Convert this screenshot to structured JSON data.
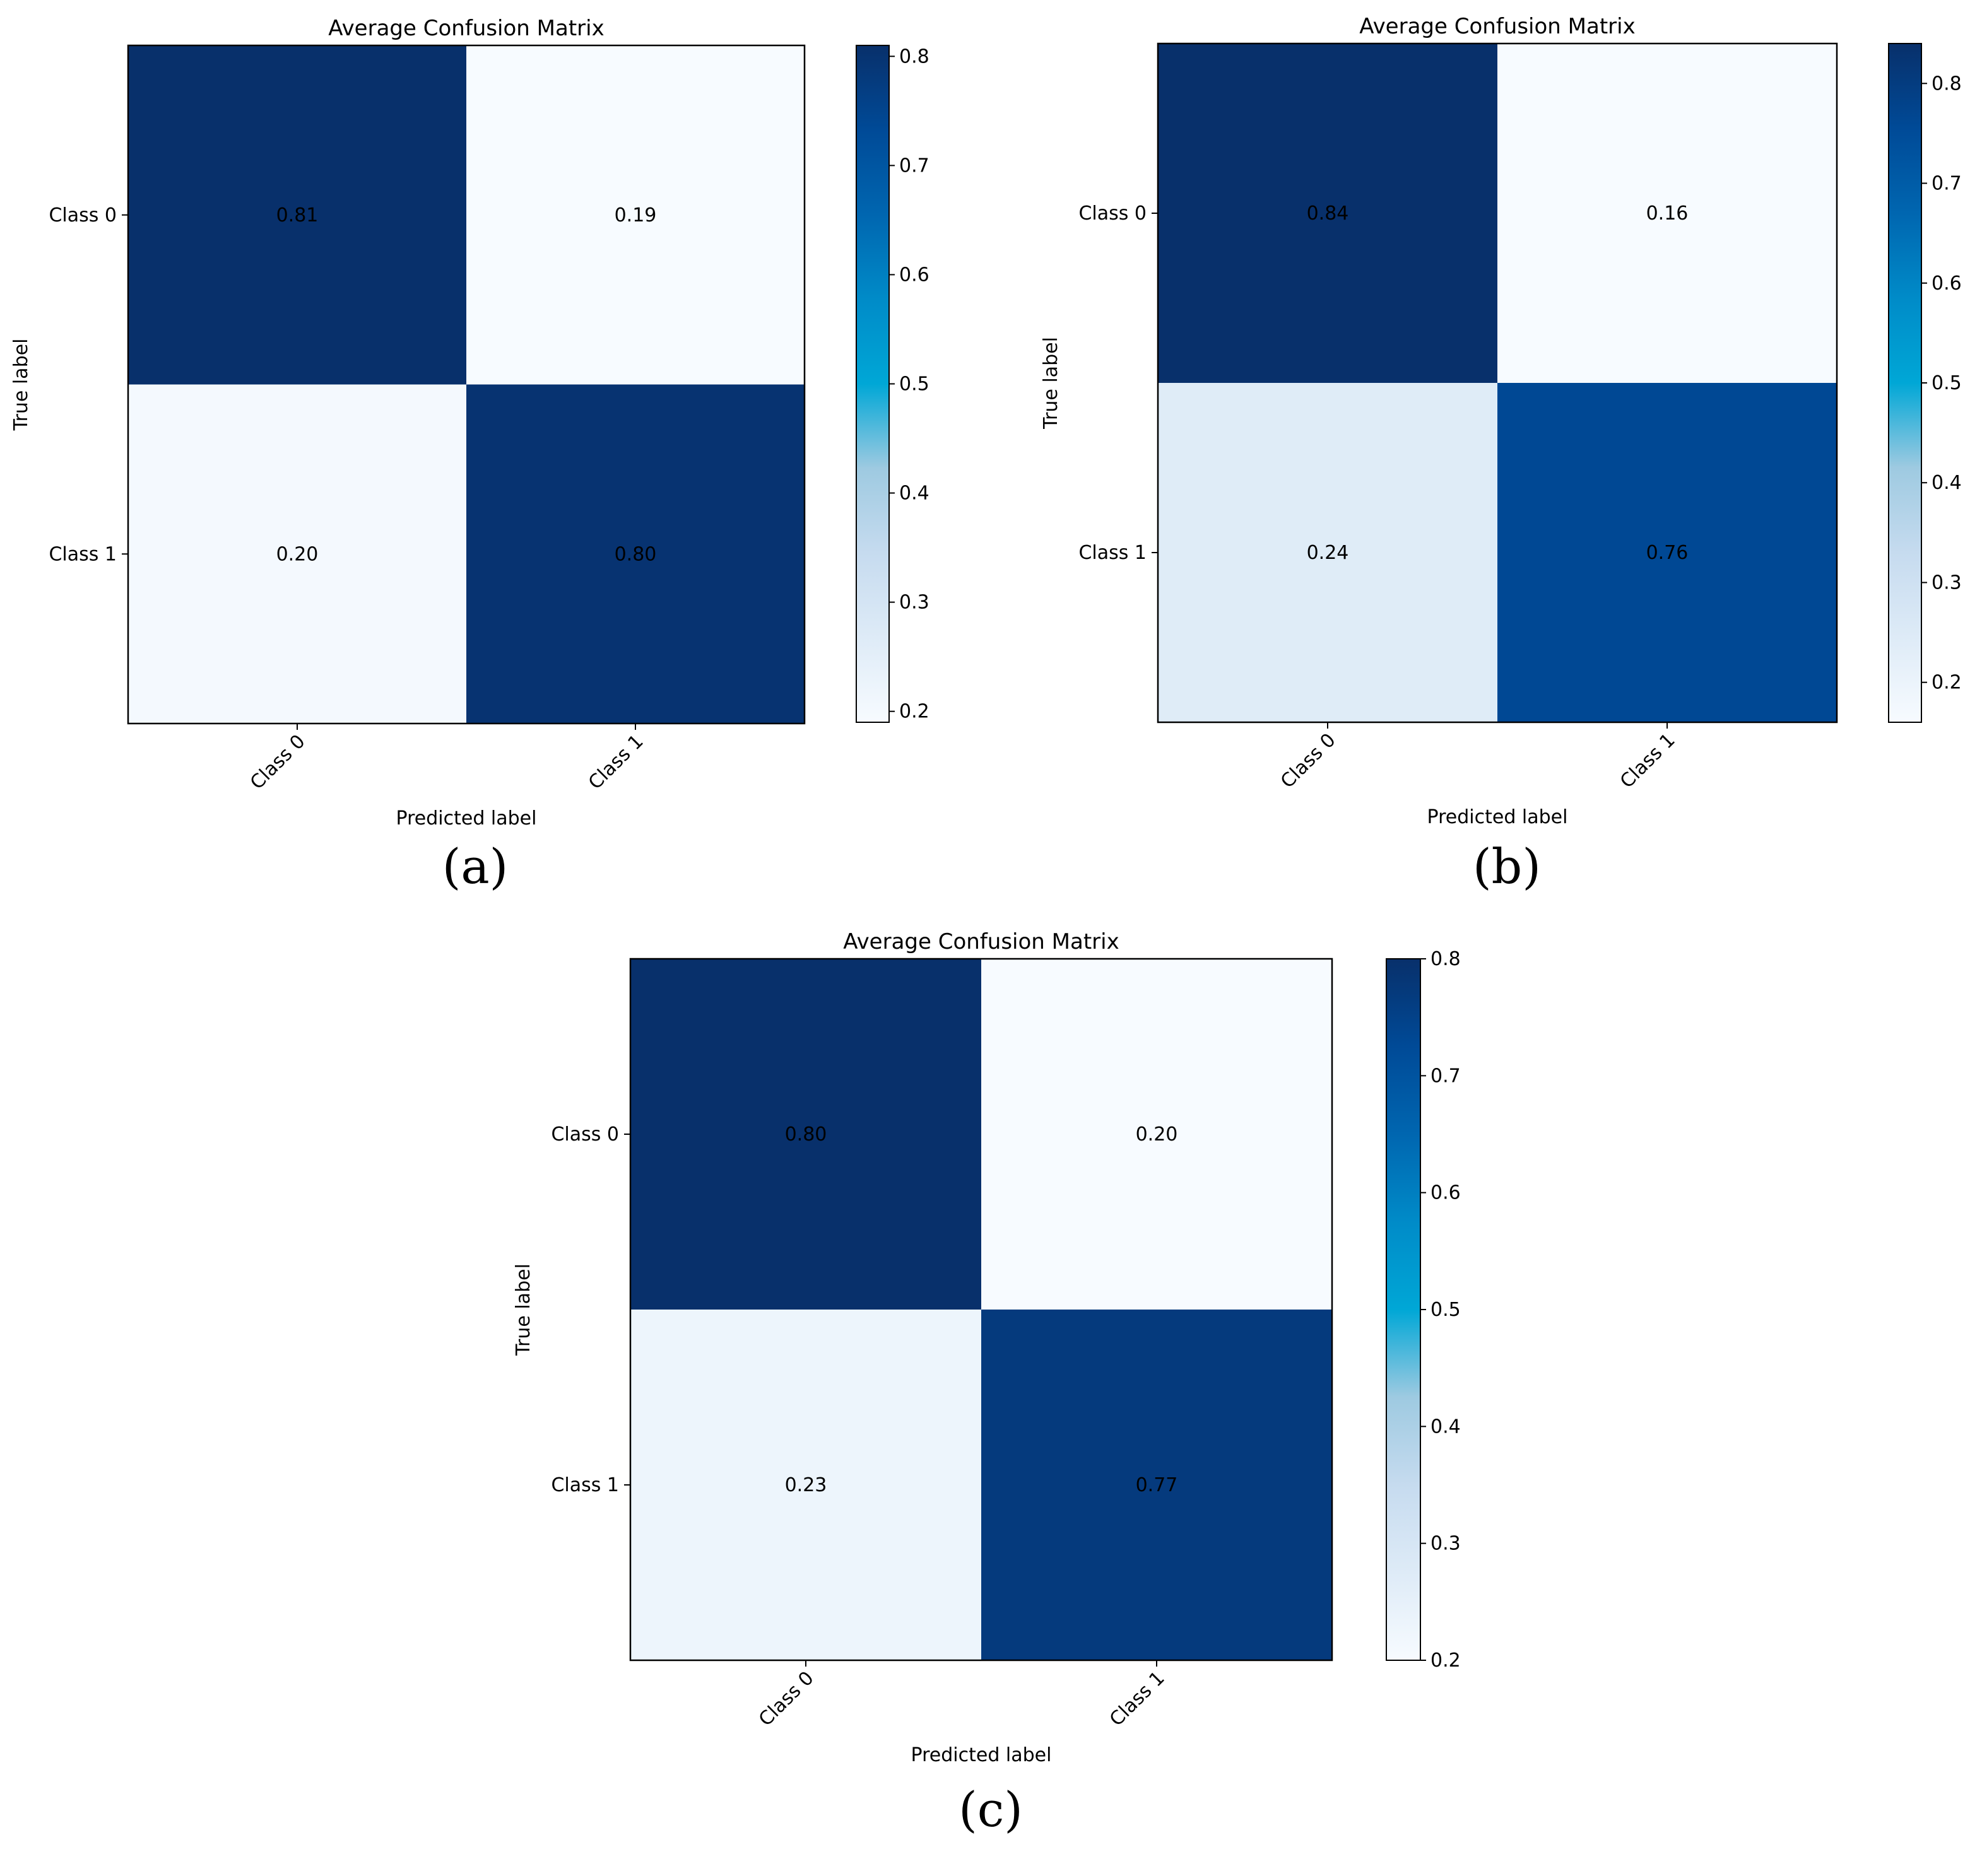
{
  "chart_data": [
    {
      "type": "heatmap",
      "panel_label": "(a)",
      "title": "Average Confusion Matrix",
      "xlabel": "Predicted label",
      "ylabel": "True label",
      "x_categories": [
        "Class 0",
        "Class 1"
      ],
      "y_categories": [
        "Class 0",
        "Class 1"
      ],
      "values": [
        [
          0.81,
          0.19
        ],
        [
          0.2,
          0.8
        ]
      ],
      "value_labels": [
        [
          "0.81",
          "0.19"
        ],
        [
          "0.20",
          "0.80"
        ]
      ],
      "colorbar": {
        "ticks": [
          "0.2",
          "0.3",
          "0.4",
          "0.5",
          "0.6",
          "0.7",
          "0.8"
        ],
        "range": [
          0.19,
          0.81
        ]
      },
      "colormap": "Blues"
    },
    {
      "type": "heatmap",
      "panel_label": "(b)",
      "title": "Average Confusion Matrix",
      "xlabel": "Predicted label",
      "ylabel": "True label",
      "x_categories": [
        "Class 0",
        "Class 1"
      ],
      "y_categories": [
        "Class 0",
        "Class 1"
      ],
      "values": [
        [
          0.84,
          0.16
        ],
        [
          0.24,
          0.76
        ]
      ],
      "value_labels": [
        [
          "0.84",
          "0.16"
        ],
        [
          "0.24",
          "0.76"
        ]
      ],
      "colorbar": {
        "ticks": [
          "0.2",
          "0.3",
          "0.4",
          "0.5",
          "0.6",
          "0.7",
          "0.8"
        ],
        "range": [
          0.16,
          0.84
        ]
      },
      "colormap": "Blues"
    },
    {
      "type": "heatmap",
      "panel_label": "(c)",
      "title": "Average Confusion Matrix",
      "xlabel": "Predicted label",
      "ylabel": "True label",
      "x_categories": [
        "Class 0",
        "Class 1"
      ],
      "y_categories": [
        "Class 0",
        "Class 1"
      ],
      "values": [
        [
          0.8,
          0.2
        ],
        [
          0.23,
          0.77
        ]
      ],
      "value_labels": [
        [
          "0.80",
          "0.20"
        ],
        [
          "0.23",
          "0.77"
        ]
      ],
      "colorbar": {
        "ticks": [
          "0.2",
          "0.3",
          "0.4",
          "0.5",
          "0.6",
          "0.7",
          "0.8"
        ],
        "range": [
          0.2,
          0.8
        ]
      },
      "colormap": "Blues"
    }
  ]
}
